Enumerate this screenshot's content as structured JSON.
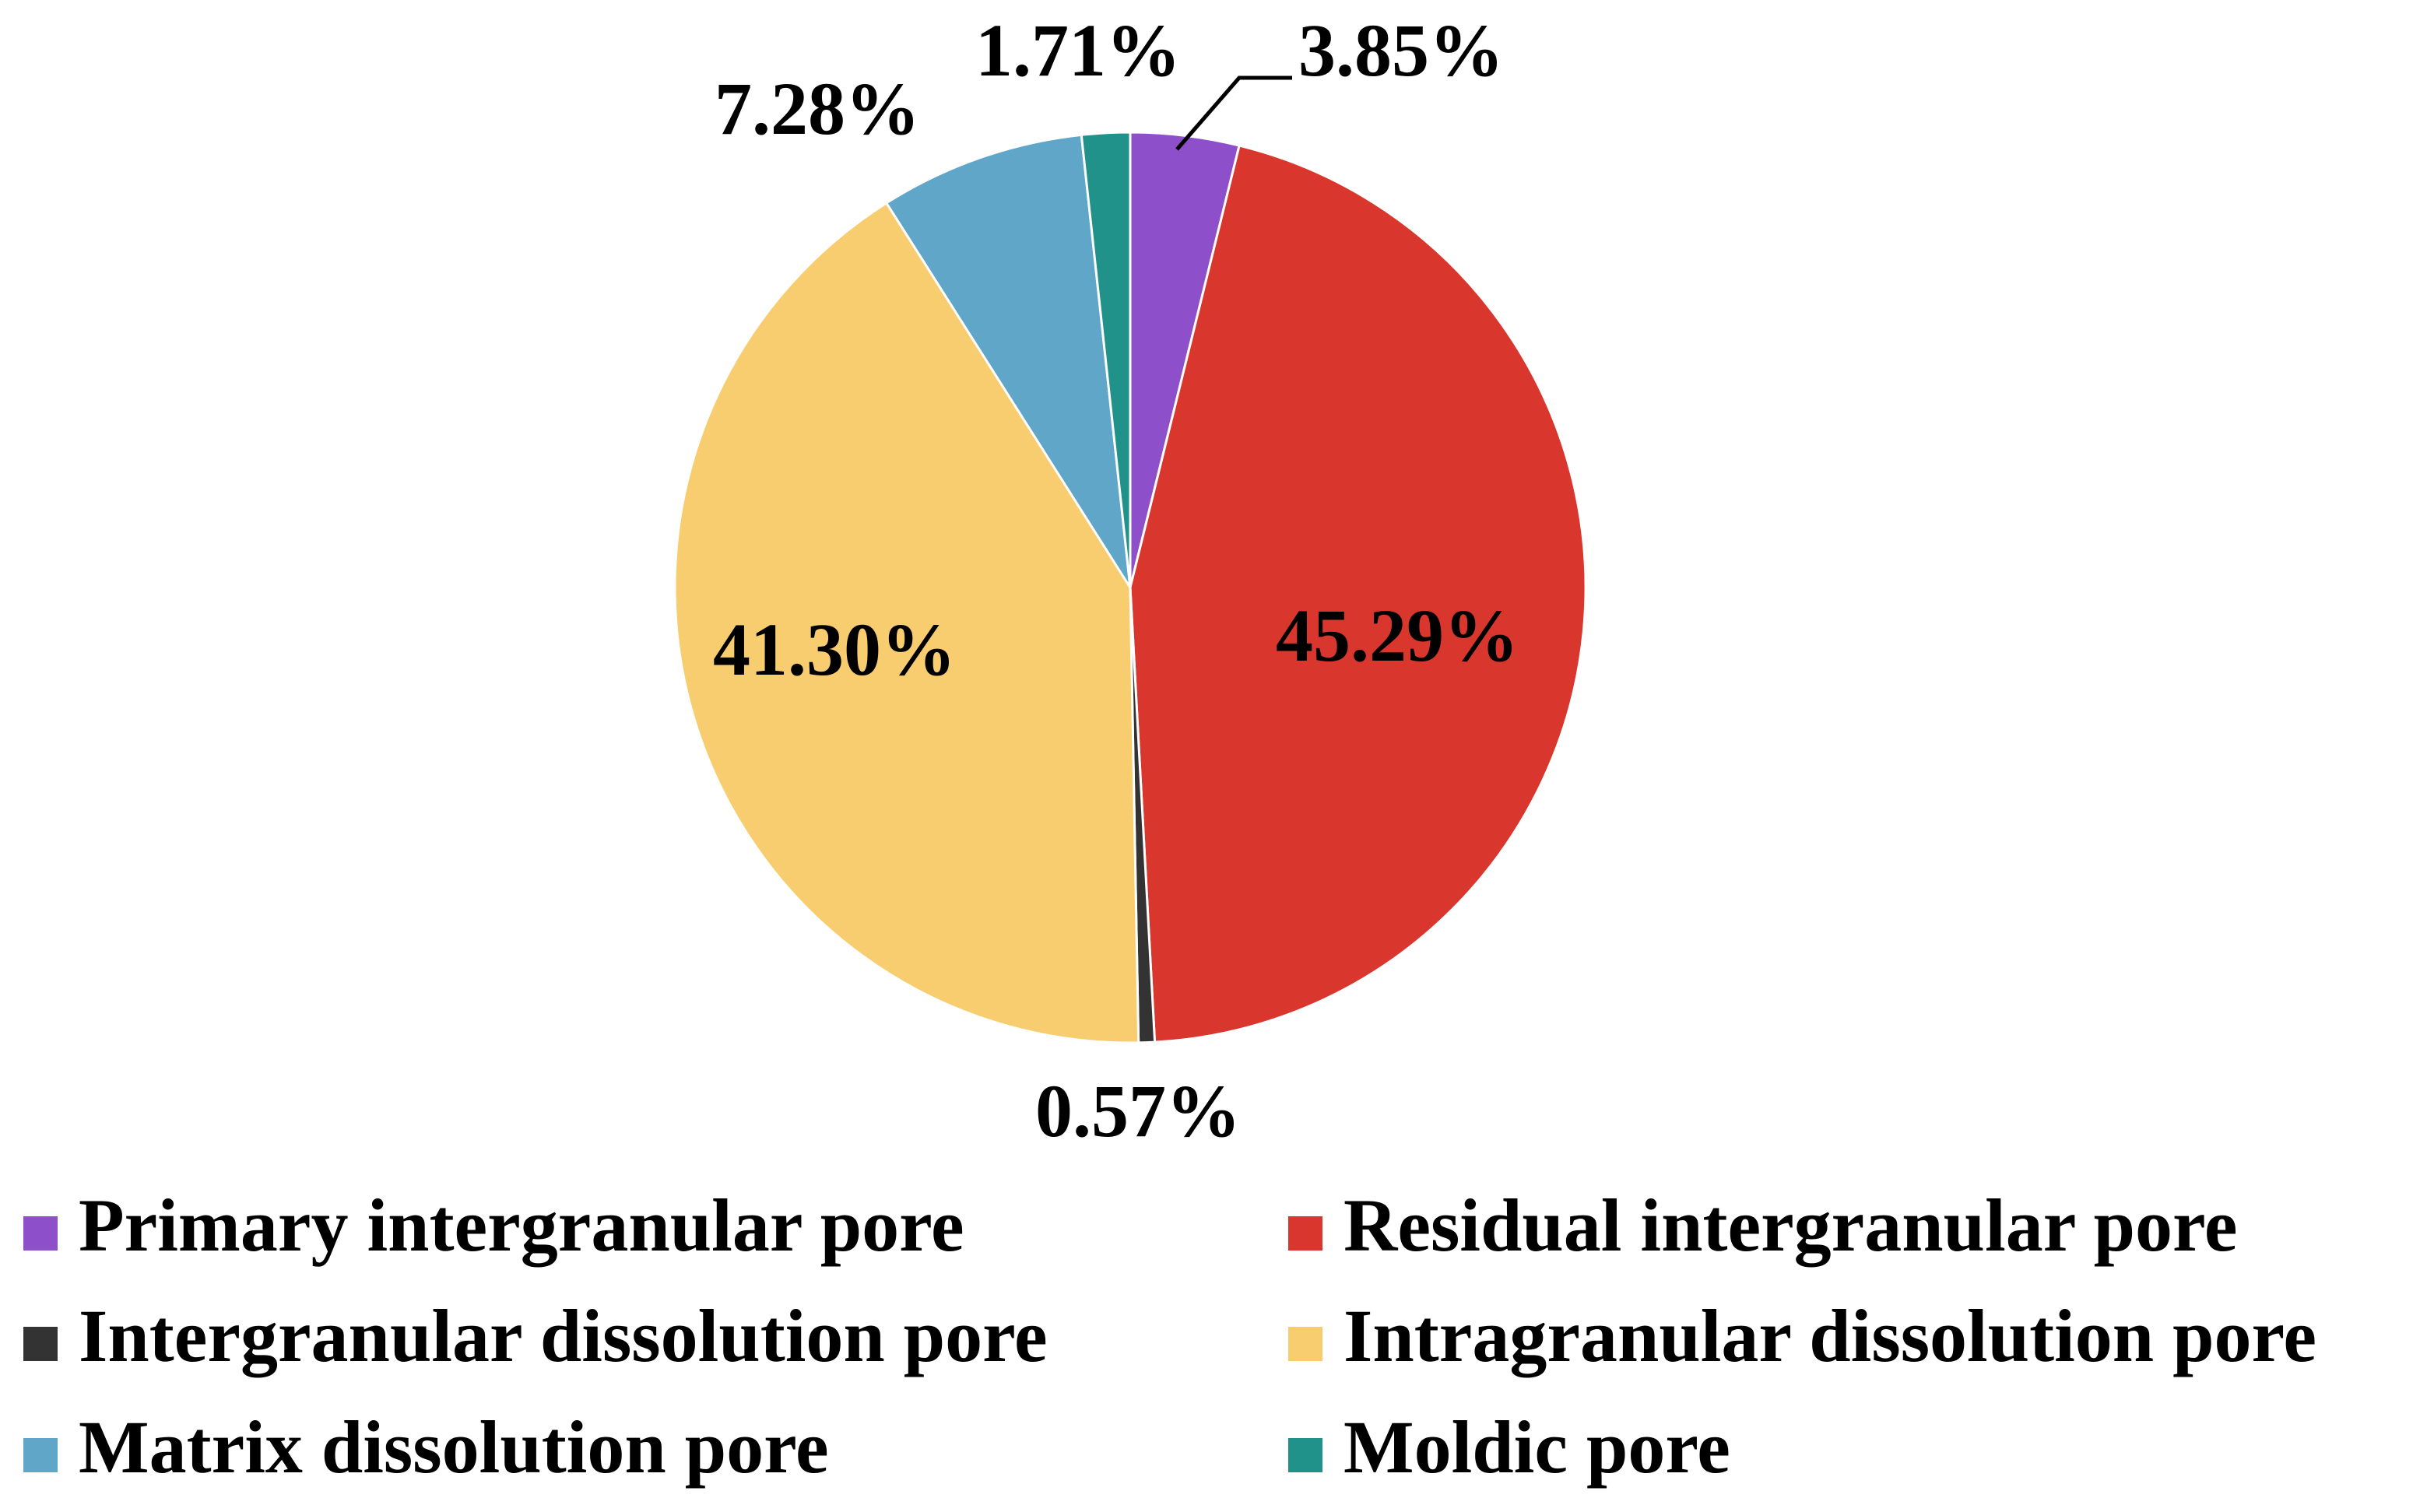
{
  "chart_data": {
    "type": "pie",
    "title": "",
    "start_angle_deg": 0,
    "direction": "clockwise",
    "slices": [
      {
        "name": "Primary intergranular pore",
        "value": 3.85,
        "label": "3.85%",
        "color": "#8e4fcb"
      },
      {
        "name": "Residual intergranular pore",
        "value": 45.29,
        "label": "45.29%",
        "color": "#d9372d"
      },
      {
        "name": "Intergranular dissolution pore",
        "value": 0.57,
        "label": "0.57%",
        "color": "#333333"
      },
      {
        "name": "Intragranular dissolution pore",
        "value": 41.3,
        "label": "41.30%",
        "color": "#f8cd6f"
      },
      {
        "name": "Matrix dissolution pore",
        "value": 7.28,
        "label": "7.28%",
        "color": "#5fa6c9"
      },
      {
        "name": "Moldic pore",
        "value": 1.71,
        "label": "1.71%",
        "color": "#21928a"
      }
    ],
    "legend": {
      "placement": "bottom",
      "columns": 2
    }
  }
}
